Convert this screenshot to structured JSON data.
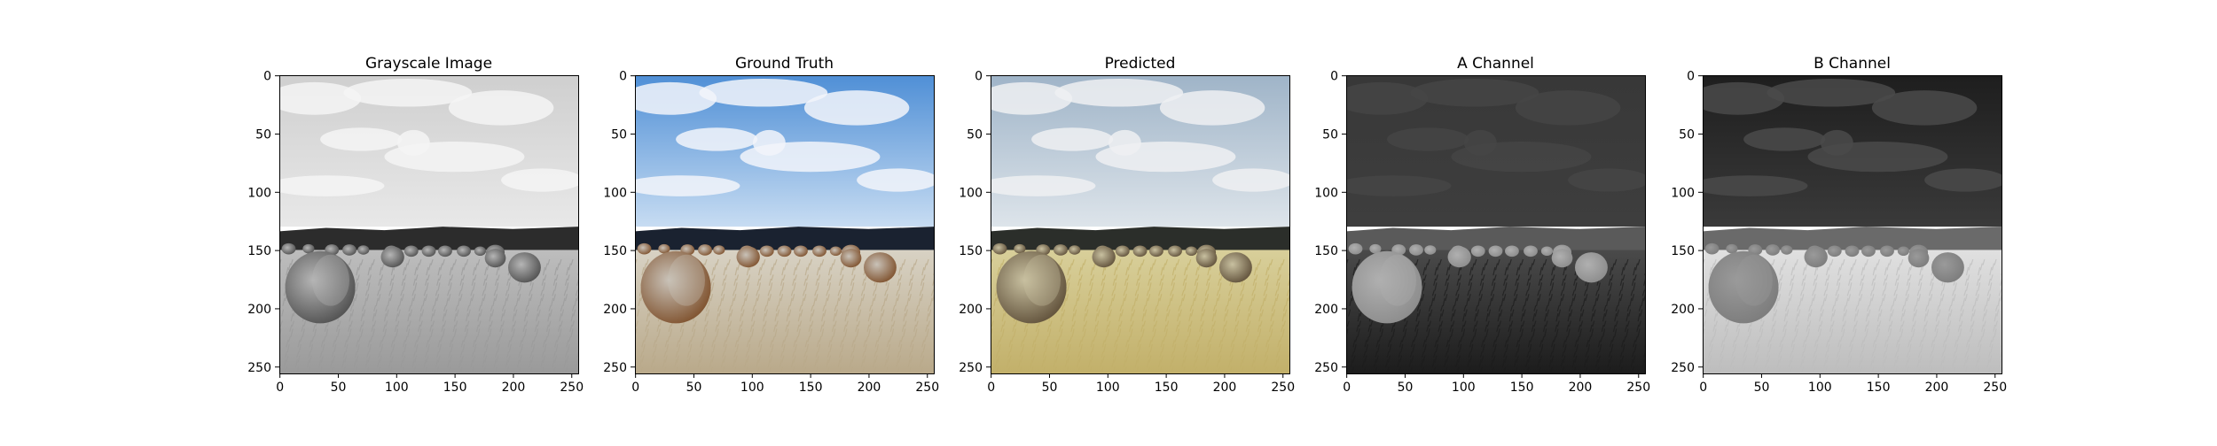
{
  "chart_data": [
    {
      "type": "image",
      "title": "Grayscale Image",
      "xlim": [
        0,
        256
      ],
      "ylim": [
        256,
        0
      ],
      "xticks": [
        0,
        50,
        100,
        150,
        200,
        250
      ],
      "yticks": [
        0,
        50,
        100,
        150,
        200,
        250
      ],
      "palette": {
        "sky_top": "#cfcfcf",
        "sky_bottom": "#e8e8e8",
        "cloud": "#f4f4f4",
        "treeline": "#2c2c2c",
        "field_top": "#bdbdbd",
        "field_bottom": "#9a9a9a",
        "bale": "#4a4a4a",
        "bale_top": "#b5b5b5"
      }
    },
    {
      "type": "image",
      "title": "Ground Truth",
      "xlim": [
        0,
        256
      ],
      "ylim": [
        256,
        0
      ],
      "xticks": [
        0,
        50,
        100,
        150,
        200,
        250
      ],
      "yticks": [
        0,
        50,
        100,
        150,
        200,
        250
      ],
      "palette": {
        "sky_top": "#4f8fd6",
        "sky_bottom": "#c7dcf2",
        "cloud": "#f2f5fa",
        "treeline": "#1a2230",
        "field_top": "#d8d2c4",
        "field_bottom": "#b9a98a",
        "bale": "#7a4a24",
        "bale_top": "#c9c2b8"
      }
    },
    {
      "type": "image",
      "title": "Predicted",
      "xlim": [
        0,
        256
      ],
      "ylim": [
        256,
        0
      ],
      "xticks": [
        0,
        50,
        100,
        150,
        200,
        250
      ],
      "yticks": [
        0,
        50,
        100,
        150,
        200,
        250
      ],
      "palette": {
        "sky_top": "#9fb4c8",
        "sky_bottom": "#dde4ea",
        "cloud": "#eef0f2",
        "treeline": "#2b2e2a",
        "field_top": "#d8cf9a",
        "field_bottom": "#c2b06a",
        "bale": "#5a4a34",
        "bale_top": "#c8c0a0"
      }
    },
    {
      "type": "image",
      "title": "A Channel",
      "xlim": [
        0,
        256
      ],
      "ylim": [
        256,
        0
      ],
      "xticks": [
        0,
        50,
        100,
        150,
        200,
        250
      ],
      "yticks": [
        0,
        50,
        100,
        150,
        200,
        250
      ],
      "palette": {
        "sky_top": "#383838",
        "sky_bottom": "#3e3e3e",
        "cloud": "#454545",
        "treeline": "#5a5a5a",
        "field_top": "#4a4a4a",
        "field_bottom": "#1c1c1c",
        "bale": "#8a8a8a",
        "bale_top": "#b0b0b0"
      }
    },
    {
      "type": "image",
      "title": "B Channel",
      "xlim": [
        0,
        256
      ],
      "ylim": [
        256,
        0
      ],
      "xticks": [
        0,
        50,
        100,
        150,
        200,
        250
      ],
      "yticks": [
        0,
        50,
        100,
        150,
        200,
        250
      ],
      "palette": {
        "sky_top": "#1e1e1e",
        "sky_bottom": "#3a3a3a",
        "cloud": "#4a4a4a",
        "treeline": "#6a6a6a",
        "field_top": "#e0e0e0",
        "field_bottom": "#bdbdbd",
        "bale": "#7a7a7a",
        "bale_top": "#9a9a9a"
      }
    }
  ]
}
